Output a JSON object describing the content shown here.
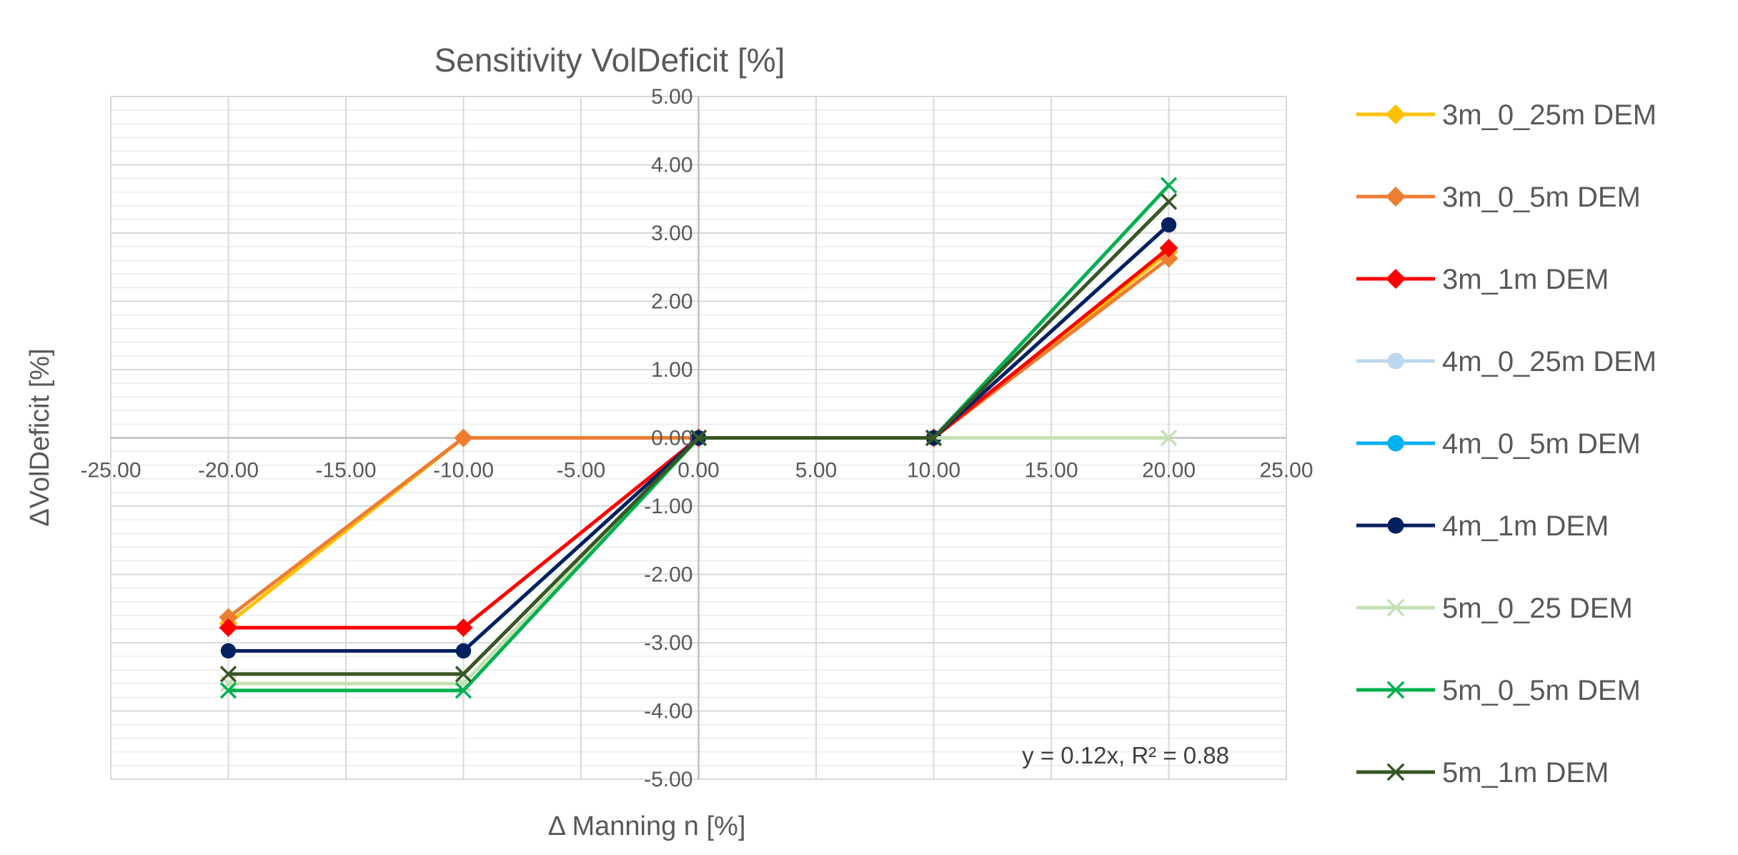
{
  "chart_data": {
    "type": "line",
    "title": "Sensitivity VolDeficit [%]",
    "xlabel": "Δ Manning n [%]",
    "ylabel": "ΔVolDeficit [%]",
    "xlim": [
      -25,
      25
    ],
    "ylim": [
      -5,
      5
    ],
    "x_major_step": 5,
    "y_major_step": 1,
    "y_minor_step": 0.2,
    "grid": true,
    "legend_position": "right",
    "x_tick_labels": [
      "-25.00",
      "-20.00",
      "-15.00",
      "-10.00",
      "-5.00",
      "0.00",
      "5.00",
      "10.00",
      "15.00",
      "20.00",
      "25.00"
    ],
    "y_tick_labels": [
      "5.00",
      "4.00",
      "3.00",
      "2.00",
      "1.00",
      "0.00",
      "-1.00",
      "-2.00",
      "-3.00",
      "-4.00",
      "-5.00"
    ],
    "annotation": "y = 0.12x, R² = 0.88",
    "series": [
      {
        "name": "3m_0_25m DEM",
        "color": "#FFC000",
        "marker": "diamond",
        "x": [
          -20,
          -10,
          0,
          10,
          20
        ],
        "y": [
          -2.72,
          0,
          0,
          0,
          2.72
        ]
      },
      {
        "name": "3m_0_5m DEM",
        "color": "#ED7D31",
        "marker": "diamond",
        "x": [
          -20,
          -10,
          0,
          10,
          20
        ],
        "y": [
          -2.63,
          0,
          0,
          0,
          2.63
        ]
      },
      {
        "name": "3m_1m DEM",
        "color": "#FF0000",
        "marker": "diamond",
        "x": [
          -20,
          -10,
          0,
          10,
          20
        ],
        "y": [
          -2.78,
          -2.78,
          0,
          0,
          2.78
        ]
      },
      {
        "name": "4m_0_25m DEM",
        "color": "#BDD7EE",
        "marker": "circle",
        "x": [
          -20,
          -10,
          0,
          10,
          20
        ],
        "y": [
          -3.12,
          -3.12,
          0,
          0,
          3.12
        ]
      },
      {
        "name": "4m_0_5m DEM",
        "color": "#00B0F0",
        "marker": "circle",
        "x": [
          -20,
          -10,
          0,
          10,
          20
        ],
        "y": [
          -3.12,
          -3.12,
          0,
          0,
          3.12
        ]
      },
      {
        "name": "4m_1m DEM",
        "color": "#002060",
        "marker": "circle",
        "x": [
          -20,
          -10,
          0,
          10,
          20
        ],
        "y": [
          -3.12,
          -3.12,
          0,
          0,
          3.12
        ]
      },
      {
        "name": "5m_0_25 DEM",
        "color": "#C5E0B4",
        "marker": "x",
        "x": [
          -20,
          -10,
          0,
          10,
          20
        ],
        "y": [
          -3.6,
          -3.6,
          0,
          0,
          0
        ]
      },
      {
        "name": "5m_0_5m DEM",
        "color": "#00B050",
        "marker": "x",
        "x": [
          -20,
          -10,
          0,
          10,
          20
        ],
        "y": [
          -3.7,
          -3.7,
          0,
          0,
          3.7
        ]
      },
      {
        "name": "5m_1m DEM",
        "color": "#375623",
        "marker": "x",
        "x": [
          -20,
          -10,
          0,
          10,
          20
        ],
        "y": [
          -3.46,
          -3.46,
          0,
          0,
          3.46
        ]
      }
    ]
  }
}
